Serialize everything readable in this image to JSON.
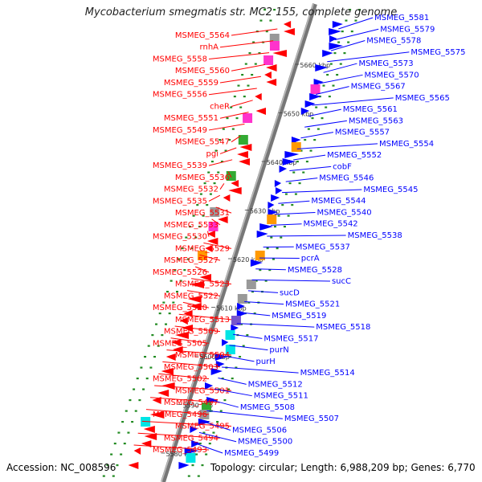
{
  "title": "Mycobacterium smegmatis str. MC2 155, complete genome",
  "footer": {
    "accession": "Accession: NC_008596",
    "summary": "Topology: circular; Length: 6,988,209 bp; Genes: 6,770"
  },
  "colors": {
    "left_strand": "#ff0000",
    "right_strand": "#0000ff",
    "backbone": "#888888",
    "ruler_dots": "#228b22",
    "cds_cyan": "#00e5e5",
    "cds_magenta": "#ff33cc",
    "cds_orange": "#ff9900",
    "cds_green": "#33aa33",
    "cds_gray": "#999999",
    "cds_purple": "#7755cc"
  },
  "scale_ticks": [
    "5580 kbp",
    "5590 kbp",
    "5600 kbp",
    "5610 kbp",
    "5620 kbp",
    "5630 kbp",
    "5640 kbp",
    "5650 kbp",
    "5660 kbp"
  ],
  "left_labels": [
    "MSMEG_5564",
    "rnhA",
    "MSMEG_5558",
    "MSMEG_5560",
    "MSMEG_5559",
    "MSMEG_5556",
    "cheR",
    "MSMEG_5551",
    "MSMEG_5549",
    "MSMEG_5547",
    "pgi",
    "MSMEG_5539",
    "MSMEG_5536",
    "MSMEG_5532",
    "MSMEG_5535",
    "MSMEG_5531",
    "MSMEG_5533",
    "MSMEG_5530",
    "MSMEG_5529",
    "MSMEG_5527",
    "MSMEG_5526",
    "MSMEG_5523",
    "MSMEG_5522",
    "MSMEG_5520",
    "MSMEG_5513",
    "MSMEG_5509",
    "MSMEG_5505",
    "MSMEG_5504",
    "MSMEG_5503",
    "MSMEG_5502",
    "MSMEG_5501",
    "MSMEG_5497",
    "MSMEG_5496",
    "MSMEG_5495",
    "MSMEG_5494",
    "MSMEG_5493"
  ],
  "right_labels": [
    "MSMEG_5581",
    "MSMEG_5579",
    "MSMEG_5578",
    "MSMEG_5575",
    "MSMEG_5573",
    "MSMEG_5570",
    "MSMEG_5567",
    "MSMEG_5565",
    "MSMEG_5561",
    "MSMEG_5563",
    "MSMEG_5557",
    "MSMEG_5554",
    "MSMEG_5552",
    "cobF",
    "MSMEG_5546",
    "MSMEG_5545",
    "MSMEG_5544",
    "MSMEG_5540",
    "MSMEG_5542",
    "MSMEG_5538",
    "MSMEG_5537",
    "pcrA",
    "MSMEG_5528",
    "sucC",
    "sucD",
    "MSMEG_5521",
    "MSMEG_5519",
    "MSMEG_5518",
    "MSMEG_5517",
    "purN",
    "purH",
    "MSMEG_5514",
    "MSMEG_5512",
    "MSMEG_5511",
    "MSMEG_5508",
    "MSMEG_5507",
    "MSMEG_5506",
    "MSMEG_5500",
    "MSMEG_5499"
  ]
}
